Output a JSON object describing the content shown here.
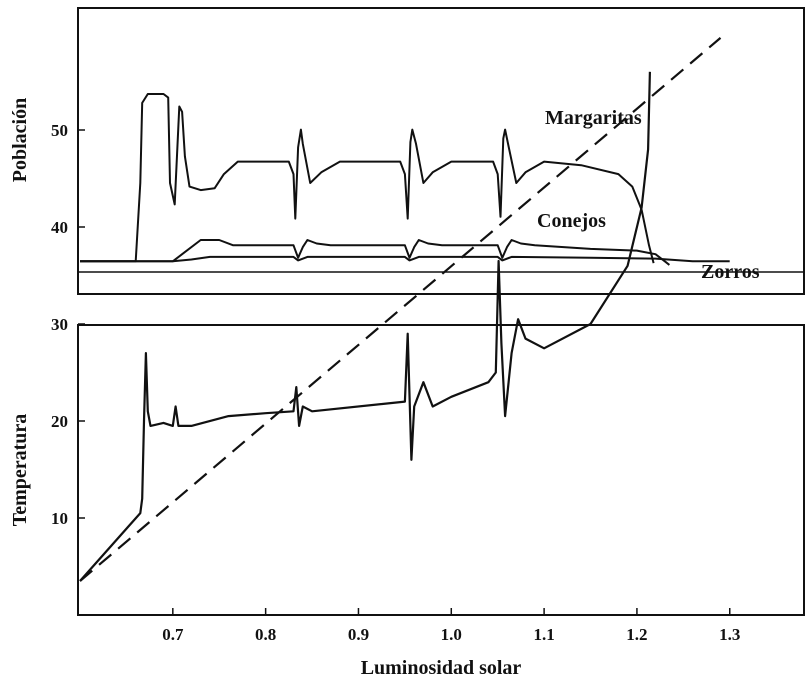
{
  "chart_data": [
    {
      "type": "line",
      "panel": "top",
      "ylabel": "Población",
      "xlim": [
        0.6,
        1.38
      ],
      "ylim": [
        0,
        1
      ],
      "grid": false,
      "series": [
        {
          "name": "Margaritas",
          "points": [
            [
              0.6,
              0.06
            ],
            [
              0.66,
              0.06
            ],
            [
              0.665,
              0.5
            ],
            [
              0.667,
              0.95
            ],
            [
              0.673,
              1.0
            ],
            [
              0.69,
              1.0
            ],
            [
              0.695,
              0.98
            ],
            [
              0.697,
              0.5
            ],
            [
              0.702,
              0.38
            ],
            [
              0.707,
              0.93
            ],
            [
              0.71,
              0.9
            ],
            [
              0.713,
              0.65
            ],
            [
              0.718,
              0.48
            ],
            [
              0.73,
              0.46
            ],
            [
              0.745,
              0.47
            ],
            [
              0.755,
              0.55
            ],
            [
              0.77,
              0.62
            ],
            [
              0.8,
              0.62
            ],
            [
              0.825,
              0.62
            ],
            [
              0.83,
              0.55
            ],
            [
              0.832,
              0.3
            ],
            [
              0.835,
              0.7
            ],
            [
              0.838,
              0.8
            ],
            [
              0.84,
              0.72
            ],
            [
              0.848,
              0.5
            ],
            [
              0.86,
              0.56
            ],
            [
              0.88,
              0.62
            ],
            [
              0.945,
              0.62
            ],
            [
              0.95,
              0.55
            ],
            [
              0.953,
              0.3
            ],
            [
              0.956,
              0.73
            ],
            [
              0.958,
              0.8
            ],
            [
              0.962,
              0.72
            ],
            [
              0.97,
              0.5
            ],
            [
              0.98,
              0.56
            ],
            [
              1.0,
              0.62
            ],
            [
              1.045,
              0.62
            ],
            [
              1.05,
              0.55
            ],
            [
              1.053,
              0.31
            ],
            [
              1.056,
              0.75
            ],
            [
              1.058,
              0.8
            ],
            [
              1.062,
              0.7
            ],
            [
              1.07,
              0.5
            ],
            [
              1.08,
              0.56
            ],
            [
              1.1,
              0.62
            ],
            [
              1.14,
              0.6
            ],
            [
              1.18,
              0.55
            ],
            [
              1.195,
              0.48
            ],
            [
              1.205,
              0.35
            ],
            [
              1.213,
              0.15
            ],
            [
              1.218,
              0.05
            ]
          ]
        },
        {
          "name": "Conejos",
          "points": [
            [
              0.6,
              0.06
            ],
            [
              0.7,
              0.06
            ],
            [
              0.71,
              0.1
            ],
            [
              0.73,
              0.18
            ],
            [
              0.75,
              0.18
            ],
            [
              0.765,
              0.15
            ],
            [
              0.8,
              0.15
            ],
            [
              0.83,
              0.15
            ],
            [
              0.835,
              0.08
            ],
            [
              0.84,
              0.14
            ],
            [
              0.845,
              0.18
            ],
            [
              0.855,
              0.16
            ],
            [
              0.87,
              0.15
            ],
            [
              0.95,
              0.15
            ],
            [
              0.955,
              0.08
            ],
            [
              0.96,
              0.14
            ],
            [
              0.965,
              0.18
            ],
            [
              0.975,
              0.16
            ],
            [
              0.99,
              0.15
            ],
            [
              1.05,
              0.15
            ],
            [
              1.055,
              0.08
            ],
            [
              1.06,
              0.14
            ],
            [
              1.065,
              0.18
            ],
            [
              1.075,
              0.16
            ],
            [
              1.09,
              0.15
            ],
            [
              1.15,
              0.13
            ],
            [
              1.2,
              0.12
            ],
            [
              1.22,
              0.1
            ],
            [
              1.23,
              0.06
            ],
            [
              1.235,
              0.04
            ]
          ]
        },
        {
          "name": "Zorros",
          "points": [
            [
              0.6,
              0.06
            ],
            [
              0.7,
              0.06
            ],
            [
              0.72,
              0.07
            ],
            [
              0.74,
              0.085
            ],
            [
              0.83,
              0.085
            ],
            [
              0.835,
              0.065
            ],
            [
              0.845,
              0.085
            ],
            [
              0.95,
              0.085
            ],
            [
              0.955,
              0.065
            ],
            [
              0.965,
              0.085
            ],
            [
              1.05,
              0.085
            ],
            [
              1.055,
              0.065
            ],
            [
              1.065,
              0.085
            ],
            [
              1.15,
              0.08
            ],
            [
              1.22,
              0.075
            ],
            [
              1.26,
              0.06
            ],
            [
              1.3,
              0.06
            ]
          ]
        }
      ]
    },
    {
      "type": "line",
      "panel": "bottom",
      "xlabel": "Luminosidad solar",
      "ylabel": "Temperatura",
      "xlim": [
        0.6,
        1.38
      ],
      "ylim": [
        0,
        60
      ],
      "xticks": [
        "0.7",
        "0.8",
        "0.9",
        "1.0",
        "1.1",
        "1.2",
        "1.3"
      ],
      "yticks": [
        "10",
        "20",
        "30",
        "40",
        "50"
      ],
      "grid": false,
      "series": [
        {
          "style": "solid",
          "points": [
            [
              0.6,
              3.5
            ],
            [
              0.665,
              10.5
            ],
            [
              0.667,
              12
            ],
            [
              0.669,
              20
            ],
            [
              0.671,
              27
            ],
            [
              0.673,
              21
            ],
            [
              0.676,
              19.5
            ],
            [
              0.69,
              19.8
            ],
            [
              0.7,
              19.5
            ],
            [
              0.703,
              21.5
            ],
            [
              0.706,
              19.5
            ],
            [
              0.72,
              19.5
            ],
            [
              0.76,
              20.5
            ],
            [
              0.8,
              20.8
            ],
            [
              0.83,
              21
            ],
            [
              0.833,
              23.5
            ],
            [
              0.836,
              19.5
            ],
            [
              0.84,
              21.5
            ],
            [
              0.85,
              21
            ],
            [
              0.95,
              22
            ],
            [
              0.953,
              29
            ],
            [
              0.957,
              16
            ],
            [
              0.96,
              21.5
            ],
            [
              0.97,
              24
            ],
            [
              0.98,
              21.5
            ],
            [
              1.0,
              22.5
            ],
            [
              1.04,
              24
            ],
            [
              1.048,
              25
            ],
            [
              1.051,
              36.5
            ],
            [
              1.054,
              28
            ],
            [
              1.058,
              20.5
            ],
            [
              1.065,
              27
            ],
            [
              1.072,
              30.5
            ],
            [
              1.08,
              28.5
            ],
            [
              1.1,
              27.5
            ],
            [
              1.15,
              30
            ],
            [
              1.19,
              36
            ],
            [
              1.205,
              42
            ],
            [
              1.212,
              48
            ],
            [
              1.214,
              56
            ]
          ]
        },
        {
          "style": "dashed",
          "points": [
            [
              0.6,
              3.5
            ],
            [
              1.29,
              59.5
            ]
          ]
        }
      ]
    }
  ]
}
